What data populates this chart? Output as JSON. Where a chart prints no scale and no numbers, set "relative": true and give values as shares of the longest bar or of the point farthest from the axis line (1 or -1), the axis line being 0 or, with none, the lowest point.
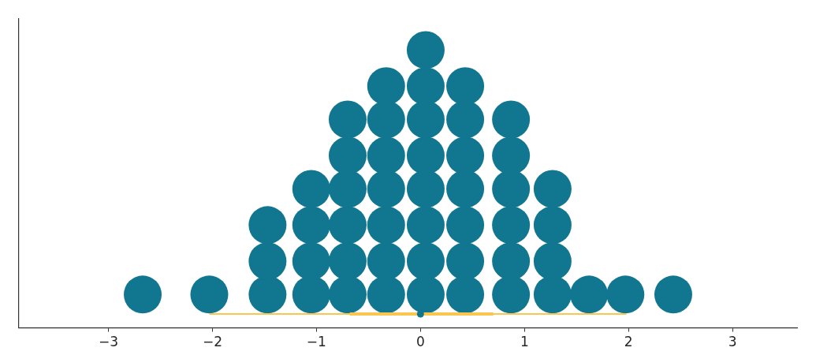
{
  "chart_data": {
    "type": "scatter",
    "relative": true,
    "tick_labels": "x",
    "xlim": [
      -3.86,
      3.62
    ],
    "xticks": [
      {
        "value": -3,
        "label": "−3"
      },
      {
        "value": -2,
        "label": "−2"
      },
      {
        "value": -1,
        "label": "−1"
      },
      0,
      1,
      2,
      3
    ],
    "series": [
      {
        "color": "#11768f",
        "marker": "circle",
        "x": [
          -2.67,
          -2.03,
          -1.47,
          -1.47,
          -1.47,
          -1.05,
          -1.05,
          -1.05,
          -1.05,
          -0.7,
          -0.7,
          -0.7,
          -0.7,
          -0.7,
          -0.7,
          -0.33,
          -0.33,
          -0.33,
          -0.33,
          -0.33,
          -0.33,
          -0.33,
          0.05,
          0.05,
          0.05,
          0.05,
          0.05,
          0.05,
          0.05,
          0.05,
          0.43,
          0.43,
          0.43,
          0.43,
          0.43,
          0.43,
          0.43,
          0.87,
          0.87,
          0.87,
          0.87,
          0.87,
          0.87,
          1.27,
          1.27,
          1.27,
          1.27,
          1.62,
          1.97,
          2.43
        ],
        "values": [
          0.12,
          0.12,
          0.12,
          0.24,
          0.37,
          0.12,
          0.24,
          0.37,
          0.5,
          0.12,
          0.24,
          0.37,
          0.5,
          0.62,
          0.75,
          0.12,
          0.24,
          0.37,
          0.5,
          0.62,
          0.75,
          0.87,
          0.12,
          0.24,
          0.37,
          0.5,
          0.62,
          0.75,
          0.87,
          1,
          0.12,
          0.24,
          0.37,
          0.5,
          0.62,
          0.75,
          0.87,
          0.12,
          0.24,
          0.37,
          0.5,
          0.62,
          0.75,
          0.12,
          0.24,
          0.37,
          0.5,
          0.12,
          0.12,
          0.12
        ]
      },
      {
        "type": "line",
        "color": "#f9c74f",
        "x": [
          -2.03,
          1.98
        ],
        "values": [
          0.05,
          0.05
        ]
      },
      {
        "type": "line",
        "color": "#f9c74f",
        "x": [
          -0.68,
          0.7
        ],
        "values": [
          0.05,
          0.05
        ]
      },
      {
        "color": "#11768f",
        "marker": "circle",
        "x": [
          0.0
        ],
        "values": [
          0.05
        ]
      }
    ]
  }
}
